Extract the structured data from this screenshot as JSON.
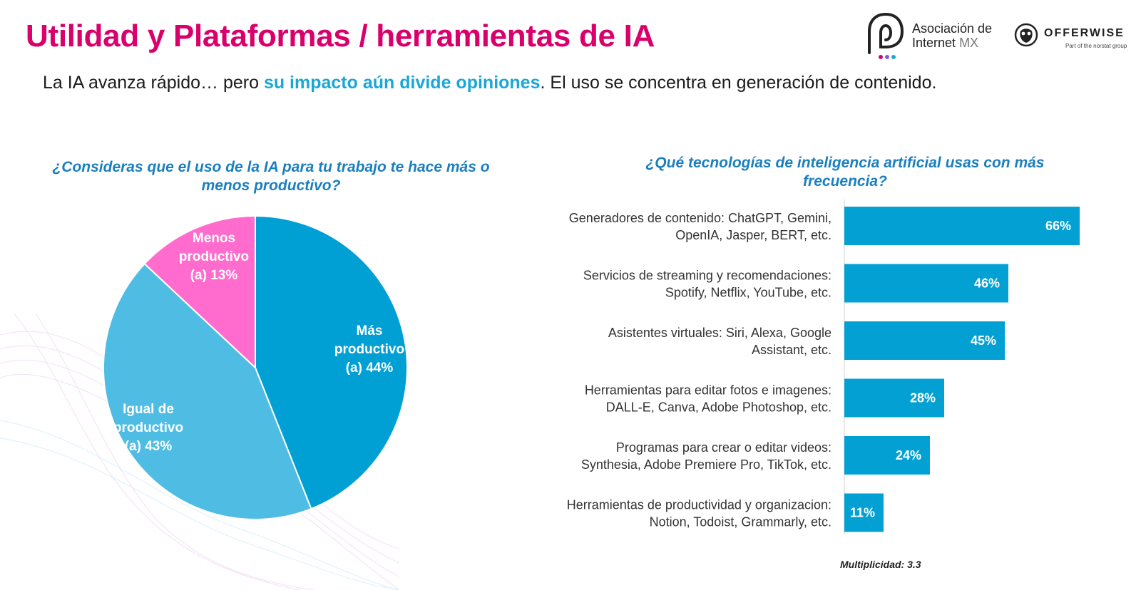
{
  "header": {
    "title": "Utilidad y Plataformas / herramientas de IA",
    "subtitle_part1": "La IA avanza rápido… pero ",
    "subtitle_highlight": "su impacto aún divide opiniones",
    "subtitle_part2": ". El uso se concentra en generación de contenido."
  },
  "logos": {
    "aim_line1": "Asociación de",
    "aim_line2": "Internet",
    "aim_mx": "MX",
    "ow_name": "OFFERWISE",
    "ow_tagline": "Part of the norstat group"
  },
  "colors": {
    "title": "#d9006c",
    "highlight": "#1aa6d6",
    "question": "#1a7fbf",
    "mas": "#009fd4",
    "igual": "#4fbde3",
    "menos": "#ff6ccd",
    "bar": "#03a0d3"
  },
  "chart_data": [
    {
      "type": "pie",
      "title": "¿Consideras que el uso de la IA para tu trabajo te hace más o menos productivo?",
      "slices": [
        {
          "label_lines": [
            "Más",
            "productivo",
            "(a) 44%"
          ],
          "value": 44,
          "color": "#009fd4"
        },
        {
          "label_lines": [
            "Igual de",
            "productivo",
            "(a) 43%"
          ],
          "value": 43,
          "color": "#4fbde3"
        },
        {
          "label_lines": [
            "Menos",
            "productivo",
            "(a) 13%"
          ],
          "value": 13,
          "color": "#ff6ccd"
        }
      ]
    },
    {
      "type": "bar",
      "orientation": "horizontal",
      "title": "¿Qué tecnologías de inteligencia artificial usas con más frecuencia?",
      "categories": [
        [
          "Generadores de contenido: ChatGPT, Gemini,",
          "OpenIA, Jasper, BERT, etc."
        ],
        [
          "Servicios de streaming y recomendaciones:",
          "Spotify, Netflix, YouTube, etc."
        ],
        [
          "Asistentes virtuales: Siri, Alexa, Google",
          "Assistant, etc."
        ],
        [
          "Herramientas para editar fotos e imagenes:",
          "DALL-E, Canva, Adobe Photoshop, etc."
        ],
        [
          "Programas para crear o editar videos:",
          "Synthesia, Adobe Premiere Pro, TikTok, etc."
        ],
        [
          "Herramientas de productividad y organizacion:",
          "Notion, Todoist, Grammarly, etc."
        ]
      ],
      "values": [
        66,
        46,
        45,
        28,
        24,
        11
      ],
      "value_labels": [
        "66%",
        "46%",
        "45%",
        "28%",
        "24%",
        "11%"
      ],
      "xlim": [
        0,
        70
      ],
      "note": "Multiplicidad: 3.3"
    }
  ]
}
